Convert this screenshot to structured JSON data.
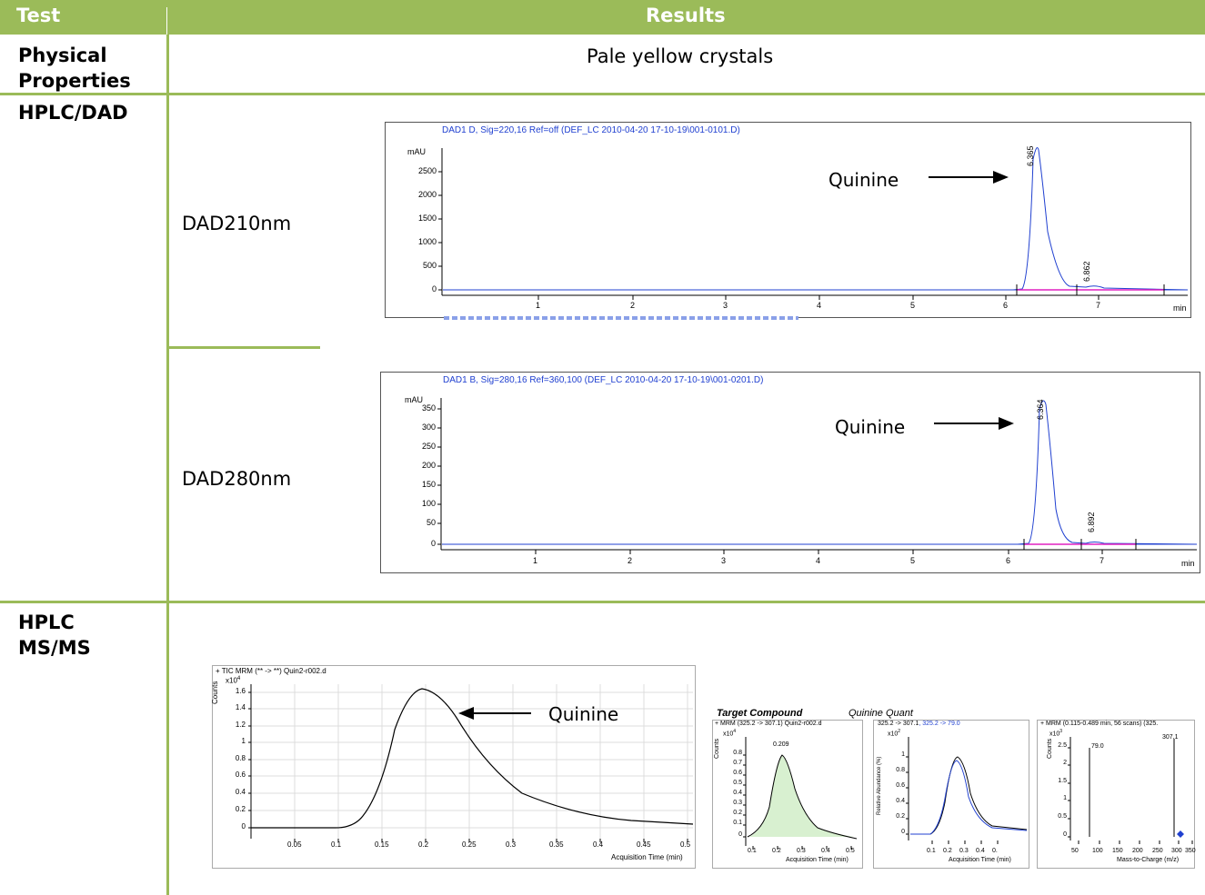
{
  "table": {
    "col_test": "Test",
    "col_results": "Results",
    "rows": {
      "physical": {
        "label_line1": "Physical",
        "label_line2": "Properties",
        "value": "Pale yellow crystals"
      },
      "hplc_dad": {
        "label": "HPLC/DAD"
      },
      "hplc_msms": {
        "label_line1": "HPLC",
        "label_line2": "MS/MS"
      }
    }
  },
  "dad210": {
    "label": "DAD210nm",
    "title": "DAD1 D, Sig=220,16 Ref=off (DEF_LC 2010-04-20 17-10-19\\001-0101.D)",
    "ylabel": "mAU",
    "yticks": [
      "2500",
      "2000",
      "1500",
      "1000",
      "500",
      "0"
    ],
    "xticks": [
      "1",
      "2",
      "3",
      "4",
      "5",
      "6",
      "7"
    ],
    "xunit": "min",
    "peak1_label": "6.365",
    "peak2_label": "6.862",
    "annotation": "Quinine"
  },
  "dad280": {
    "label": "DAD280nm",
    "title": "DAD1 B, Sig=280,16 Ref=360,100 (DEF_LC 2010-04-20 17-10-19\\001-0201.D)",
    "ylabel": "mAU",
    "yticks": [
      "350",
      "300",
      "250",
      "200",
      "150",
      "100",
      "50",
      "0"
    ],
    "xticks": [
      "1",
      "2",
      "3",
      "4",
      "5",
      "6",
      "7"
    ],
    "xunit": "min",
    "peak1_label": "6.364",
    "peak2_label": "6.892",
    "annotation": "Quinine"
  },
  "tic": {
    "title": "+ TIC MRM (** -> **) Quin2-r002.d",
    "yunit": "Counts",
    "yexp": "x10",
    "yexp_power": "4",
    "yticks": [
      "1.6",
      "1.4",
      "1.2",
      "1",
      "0.8",
      "0.6",
      "0.4",
      "0.2",
      "0"
    ],
    "xticks": [
      "0.05",
      "0.1",
      "0.15",
      "0.2",
      "0.25",
      "0.3",
      "0.35",
      "0.4",
      "0.45",
      "0.5"
    ],
    "xlabel": "Acquisition Time (min)",
    "annotation": "Quinine"
  },
  "target": {
    "heading": "Target Compound",
    "subheading": "Quinine Quant",
    "p1_title": "+ MRM (325.2 -> 307.1) Quin2-r002.d",
    "p1_exp": "x10",
    "p1_exp_power": "4",
    "p1_peak": "0.209",
    "p1_yticks": [
      "0.8",
      "0.7",
      "0.6",
      "0.5",
      "0.4",
      "0.3",
      "0.2",
      "0.1",
      "0"
    ],
    "p1_xticks": [
      "0.1",
      "0.2",
      "0.3",
      "0.4",
      "0.5"
    ],
    "p1_xlabel": "Acquisition Time (min)",
    "p1_ylabel": "Counts",
    "p2_title_a": "325.2 -> 307.1",
    "p2_title_b": ", 325.2 -> 79.0",
    "p2_exp": "x10",
    "p2_exp_power": "2",
    "p2_ylabel": "Relative Abundance (%)",
    "p2_yticks": [
      "1",
      "0.8",
      "0.6",
      "0.4",
      "0.2",
      "0"
    ],
    "p2_xticks": [
      "0.1",
      "0.2",
      "0.3",
      "0.4",
      "0."
    ],
    "p2_xlabel": "Acquisition Time (min)",
    "p3_title": "+ MRM (0.115-0.489 min, 56 scans) (325.",
    "p3_exp": "x10",
    "p3_exp_power": "3",
    "p3_ylabel": "Counts",
    "p3_yticks": [
      "2.5",
      "2",
      "1.5",
      "1",
      "0.5",
      "0"
    ],
    "p3_xticks": [
      "50",
      "100",
      "150",
      "200",
      "250",
      "300",
      "350"
    ],
    "p3_xlabel": "Mass-to-Charge (m/z)",
    "p3_peak1": "79.0",
    "p3_peak2": "307.1"
  },
  "colors": {
    "header": "#9bbb59",
    "trace_blue": "#2040d0",
    "baseline_pink": "#e020c0",
    "fill_green": "#d8f0d0"
  }
}
